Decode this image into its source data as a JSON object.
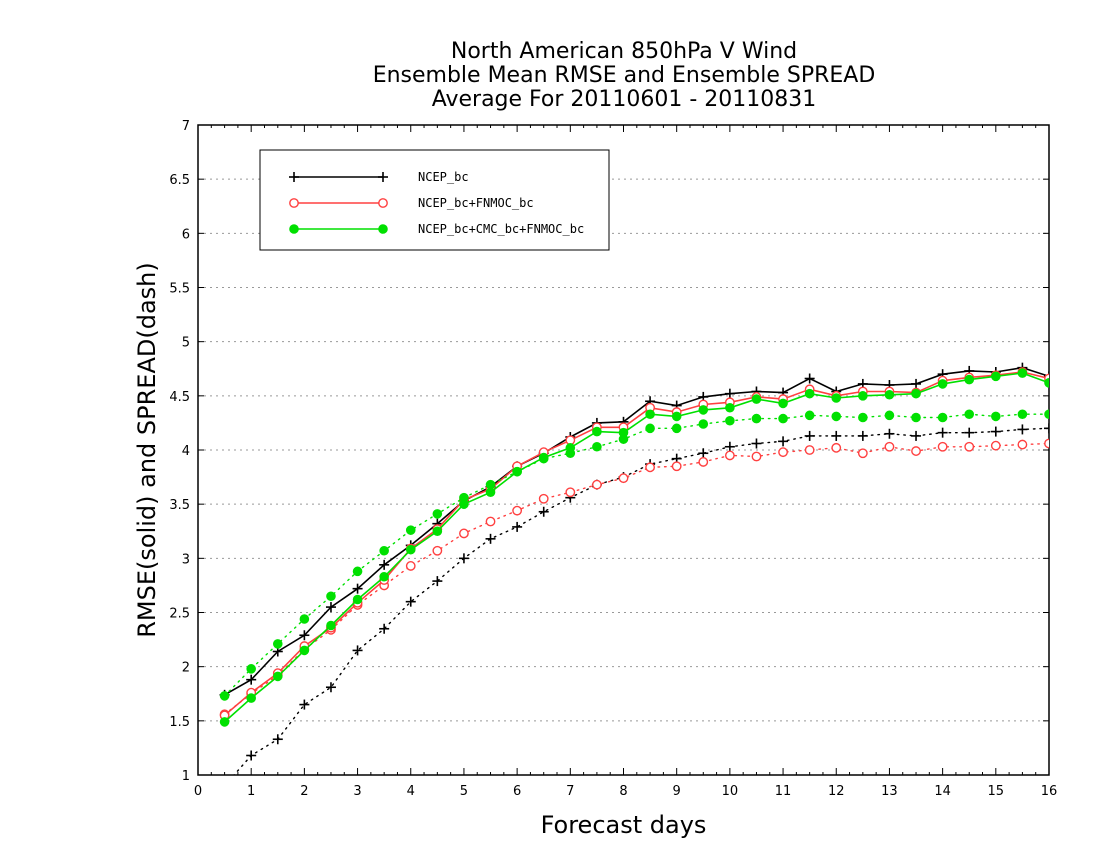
{
  "chart_data": {
    "type": "line",
    "title": [
      "North American 850hPa V Wind",
      "Ensemble Mean RMSE and Ensemble SPREAD",
      "Average For 20110601 - 20110831"
    ],
    "xlabel": "Forecast days",
    "ylabel": "RMSE(solid) and SPREAD(dash)",
    "xlim": [
      0,
      16
    ],
    "ylim": [
      1,
      7
    ],
    "xticks": [
      "0",
      "1",
      "2",
      "3",
      "4",
      "5",
      "6",
      "7",
      "8",
      "9",
      "10",
      "11",
      "12",
      "13",
      "14",
      "15",
      "16"
    ],
    "yticks": [
      "1",
      "1.5",
      "2",
      "2.5",
      "3",
      "3.5",
      "4",
      "4.5",
      "5",
      "5.5",
      "6",
      "6.5",
      "7"
    ],
    "grid": true,
    "legend_position": "top-left",
    "x": [
      0.5,
      1,
      1.5,
      2,
      2.5,
      3,
      3.5,
      4,
      4.5,
      5,
      5.5,
      6,
      6.5,
      7,
      7.5,
      8,
      8.5,
      9,
      9.5,
      10,
      10.5,
      11,
      11.5,
      12,
      12.5,
      13,
      13.5,
      14,
      14.5,
      15,
      15.5,
      16
    ],
    "series": [
      {
        "name": "NCEP_bc",
        "color": "#000000",
        "marker": "plus",
        "rmse": [
          1.74,
          1.88,
          2.14,
          2.29,
          2.55,
          2.72,
          2.94,
          3.12,
          3.32,
          3.53,
          3.66,
          3.85,
          3.97,
          4.12,
          4.25,
          4.26,
          4.45,
          4.41,
          4.49,
          4.52,
          4.54,
          4.53,
          4.66,
          4.54,
          4.61,
          4.6,
          4.61,
          4.7,
          4.73,
          4.72,
          4.76,
          4.68
        ],
        "spread": [
          0.9,
          1.18,
          1.33,
          1.65,
          1.81,
          2.15,
          2.35,
          2.6,
          2.79,
          3.0,
          3.18,
          3.29,
          3.43,
          3.56,
          3.68,
          3.75,
          3.87,
          3.92,
          3.97,
          4.03,
          4.06,
          4.08,
          4.13,
          4.13,
          4.13,
          4.15,
          4.13,
          4.16,
          4.16,
          4.17,
          4.19,
          4.2
        ]
      },
      {
        "name": "NCEP_bc+FNMOC_bc",
        "color": "#ff4040",
        "marker": "open-circle",
        "rmse": [
          1.55,
          1.76,
          1.94,
          2.19,
          2.36,
          2.59,
          2.8,
          3.09,
          3.27,
          3.54,
          3.64,
          3.85,
          3.98,
          4.09,
          4.21,
          4.21,
          4.39,
          4.35,
          4.42,
          4.44,
          4.49,
          4.47,
          4.56,
          4.5,
          4.54,
          4.54,
          4.53,
          4.64,
          4.67,
          4.69,
          4.72,
          4.66
        ],
        "spread": [
          1.56,
          1.75,
          1.92,
          2.16,
          2.34,
          2.57,
          2.75,
          2.93,
          3.07,
          3.23,
          3.34,
          3.44,
          3.55,
          3.61,
          3.68,
          3.74,
          3.84,
          3.85,
          3.89,
          3.95,
          3.94,
          3.98,
          4.0,
          4.02,
          3.97,
          4.03,
          3.99,
          4.03,
          4.03,
          4.04,
          4.05,
          4.06
        ]
      },
      {
        "name": "NCEP_bc+CMC_bc+FNMOC_bc",
        "color": "#00e000",
        "marker": "filled-circle",
        "rmse": [
          1.49,
          1.71,
          1.91,
          2.15,
          2.38,
          2.62,
          2.83,
          3.08,
          3.25,
          3.5,
          3.61,
          3.8,
          3.93,
          4.02,
          4.17,
          4.16,
          4.33,
          4.31,
          4.37,
          4.39,
          4.47,
          4.43,
          4.52,
          4.48,
          4.5,
          4.51,
          4.52,
          4.61,
          4.65,
          4.68,
          4.71,
          4.62
        ],
        "spread": [
          1.73,
          1.98,
          2.21,
          2.44,
          2.65,
          2.88,
          3.07,
          3.26,
          3.41,
          3.56,
          3.68,
          3.8,
          3.92,
          3.97,
          4.03,
          4.1,
          4.2,
          4.2,
          4.24,
          4.27,
          4.29,
          4.29,
          4.32,
          4.31,
          4.3,
          4.32,
          4.3,
          4.3,
          4.33,
          4.31,
          4.33,
          4.33
        ]
      }
    ]
  }
}
